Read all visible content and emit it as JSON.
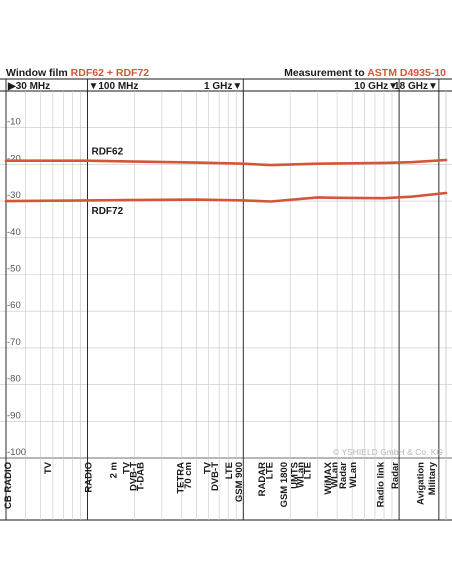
{
  "header": {
    "left_prefix": "Window film",
    "left_highlight": "RDF62 + RDF72",
    "right_prefix": "Measurement to",
    "right_highlight": "ASTM D4935-10"
  },
  "colors": {
    "series": "#d4553a",
    "accent_text": "#d4553a",
    "grid": "#c8c8c8",
    "marker_line": "#1a1a1a"
  },
  "watermark": "© YSHIELD GmbH & Co. KG",
  "chart_data": {
    "type": "line",
    "x_scale": "log",
    "y_scale": "linear",
    "xlim": [
      "30 MHz",
      "20 GHz"
    ],
    "ylim": [
      -100,
      0
    ],
    "y_ticks": [
      "-10",
      "-20",
      "-30",
      "-40",
      "-50",
      "-60",
      "-70",
      "-80",
      "-90",
      "-100"
    ],
    "frequency_markers": [
      {
        "label": "30 MHz",
        "mhz": 30
      },
      {
        "label": "100 MHz",
        "mhz": 100
      },
      {
        "label": "1 GHz",
        "mhz": 1000
      },
      {
        "label": "10 GHz",
        "mhz": 10000
      },
      {
        "label": "18 GHz",
        "mhz": 18000
      }
    ],
    "series": [
      {
        "name": "RDF62",
        "x_mhz": [
          30,
          100,
          500,
          1000,
          1500,
          3000,
          5000,
          8000,
          12000,
          20000
        ],
        "values": [
          -19,
          -19,
          -19.5,
          -19.8,
          -20.2,
          -19.8,
          -19.7,
          -19.6,
          -19.4,
          -18.8
        ]
      },
      {
        "name": "RDF72",
        "x_mhz": [
          30,
          100,
          500,
          1000,
          1500,
          3000,
          4000,
          8000,
          12000,
          20000
        ],
        "values": [
          -30,
          -29.8,
          -29.6,
          -29.8,
          -30.1,
          -29,
          -29.1,
          -29.2,
          -28.8,
          -27.8
        ]
      }
    ],
    "band_labels": [
      {
        "text": "CB RADIO",
        "mhz": 30
      },
      {
        "text": "TV",
        "mhz": 55
      },
      {
        "text": "RADIO",
        "mhz": 100
      },
      {
        "text": "2 m",
        "mhz": 145
      },
      {
        "text": "TV",
        "mhz": 175
      },
      {
        "text": "DVB-T",
        "mhz": 195
      },
      {
        "text": "T-DAB",
        "mhz": 215
      },
      {
        "text": "TETRA",
        "mhz": 390
      },
      {
        "text": "70 cm",
        "mhz": 435
      },
      {
        "text": "TV",
        "mhz": 580
      },
      {
        "text": "DVB-T",
        "mhz": 650
      },
      {
        "text": "LTE",
        "mhz": 800
      },
      {
        "text": "GSM 900",
        "mhz": 925
      },
      {
        "text": "RADAR",
        "mhz": 1300
      },
      {
        "text": "LTE",
        "mhz": 1450
      },
      {
        "text": "GSM 1800",
        "mhz": 1800
      },
      {
        "text": "UMTS",
        "mhz": 2100
      },
      {
        "text": "WLan",
        "mhz": 2300
      },
      {
        "text": "LTE",
        "mhz": 2550
      },
      {
        "text": "WiMAX",
        "mhz": 3450
      },
      {
        "text": "WLan",
        "mhz": 3800
      },
      {
        "text": "Radar",
        "mhz": 4300
      },
      {
        "text": "WLan",
        "mhz": 5000
      },
      {
        "text": "Radio link",
        "mhz": 7500
      },
      {
        "text": "Radar",
        "mhz": 9300
      },
      {
        "text": "Avigation",
        "mhz": 13500
      },
      {
        "text": "Military",
        "mhz": 16000
      }
    ]
  }
}
